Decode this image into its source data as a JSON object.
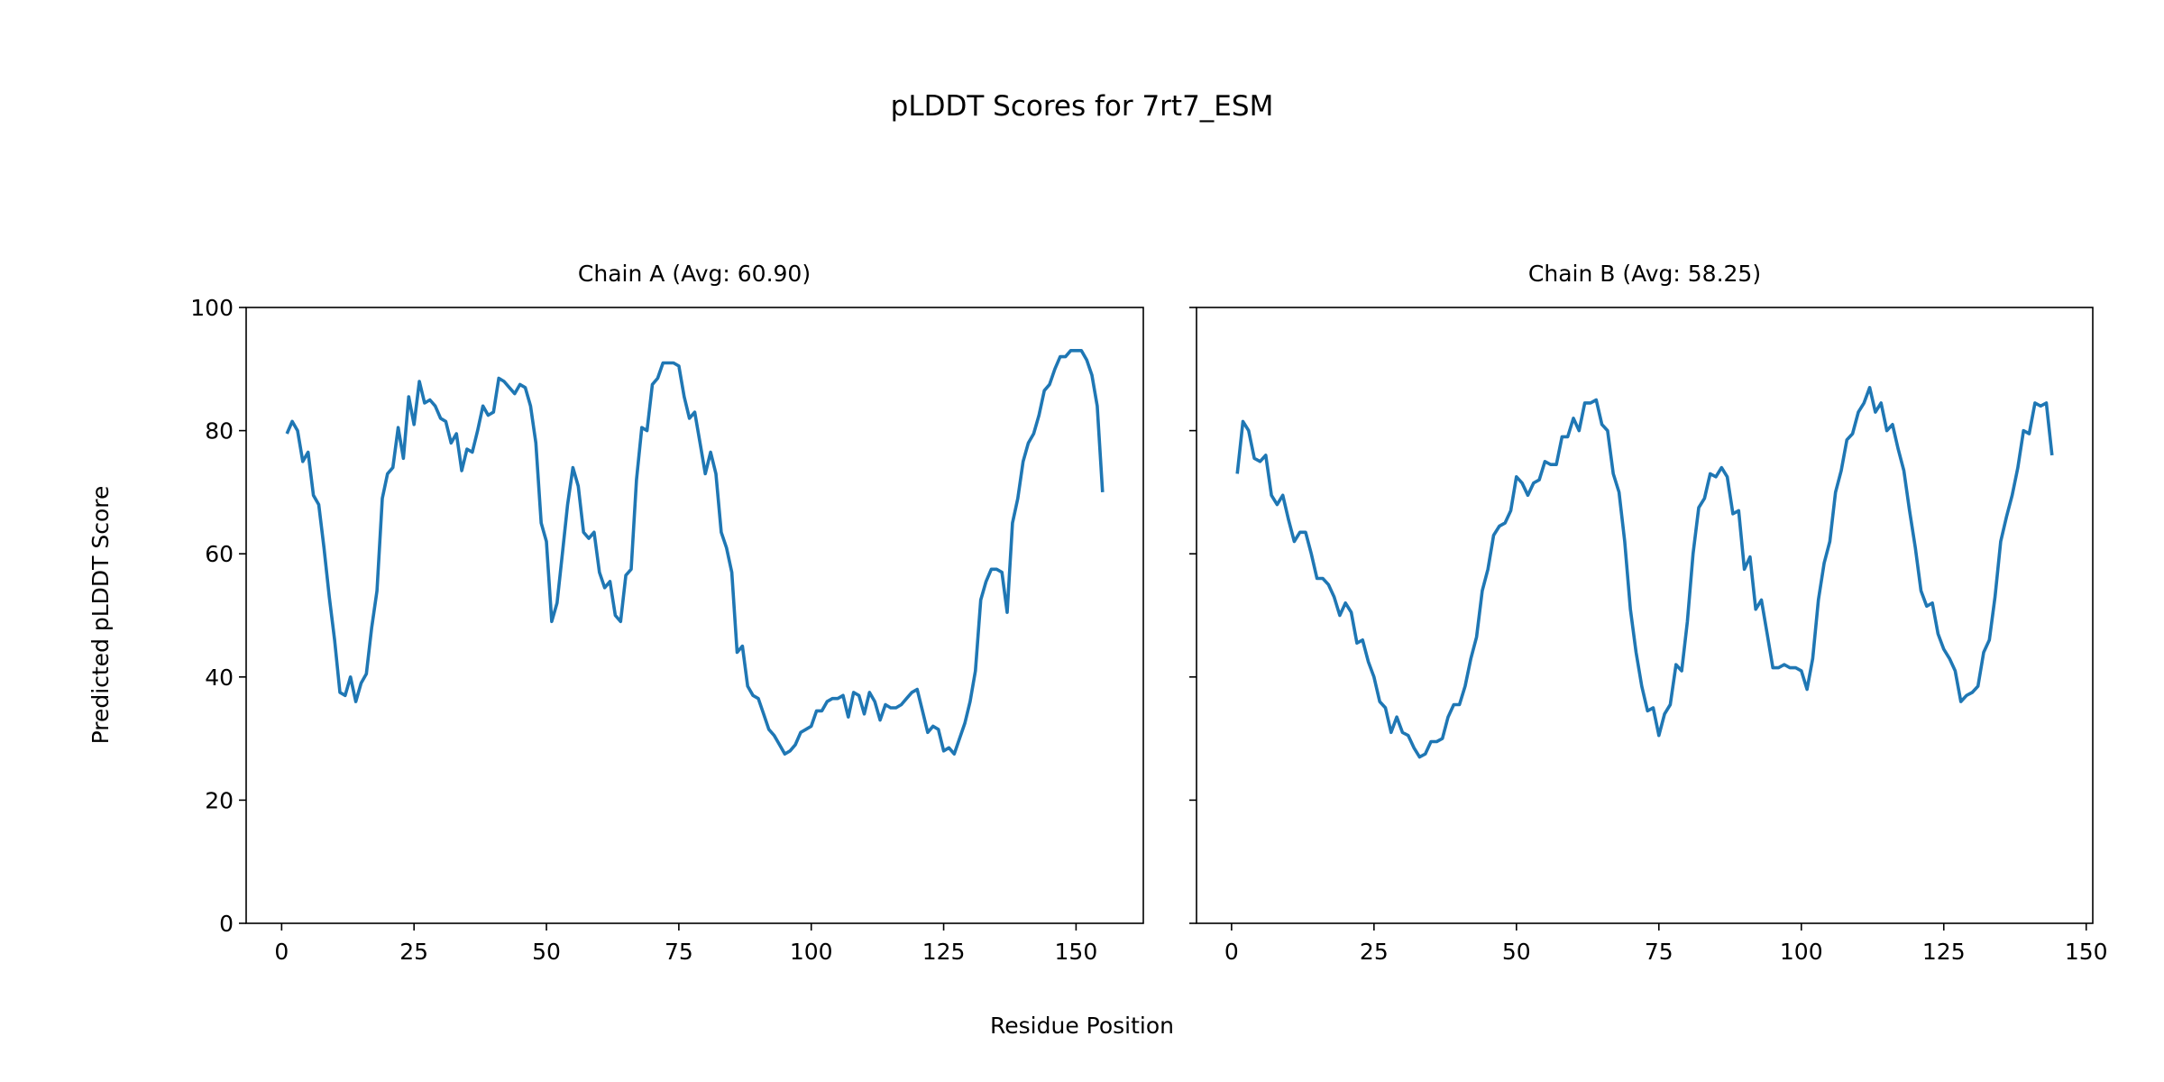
{
  "chart_data": [
    {
      "type": "line",
      "suptitle": "pLDDT Scores for 7rt7_ESM",
      "title": "Chain A (Avg: 60.90)",
      "xlabel": "Residue Position",
      "ylabel": "Predicted pLDDT Score",
      "ylim": [
        0,
        100
      ],
      "xlim": [
        -6.7,
        162.7
      ],
      "xticks": [
        0,
        25,
        50,
        75,
        100,
        125,
        150
      ],
      "yticks": [
        0,
        20,
        40,
        60,
        80,
        100
      ],
      "grid": false,
      "color": "#1f77b4",
      "x_start": 1,
      "values": [
        79.5,
        81.5,
        80,
        75,
        76.5,
        69.5,
        68,
        61,
        53,
        46,
        37.5,
        37,
        40,
        36,
        39,
        40.5,
        48,
        54,
        69,
        73,
        74,
        80.5,
        75.5,
        85.5,
        81,
        88,
        84.5,
        85,
        84,
        82,
        81.5,
        78,
        79.5,
        73.5,
        77,
        76.5,
        80,
        84,
        82.5,
        83,
        88.5,
        88,
        87,
        86,
        87.5,
        87,
        84,
        78,
        65,
        62,
        49,
        52,
        60,
        68,
        74,
        71,
        63.5,
        62.5,
        63.5,
        57,
        54.5,
        55.5,
        50,
        49,
        56.5,
        57.5,
        72,
        80.5,
        80,
        87.5,
        88.5,
        91,
        91,
        91,
        90.5,
        85.5,
        82,
        83,
        78,
        73,
        76.5,
        73,
        63.5,
        61,
        57,
        44,
        45,
        38.5,
        37,
        36.5,
        34,
        31.5,
        30.5,
        29,
        27.5,
        28,
        29,
        31,
        31.5,
        32,
        34.5,
        34.5,
        36,
        36.5,
        36.5,
        37,
        33.5,
        37.5,
        37,
        34,
        37.5,
        36,
        33,
        35.5,
        35,
        35,
        35.5,
        36.5,
        37.5,
        38,
        34.5,
        31,
        32,
        31.5,
        28,
        28.5,
        27.5,
        30,
        32.5,
        36,
        41,
        52.5,
        55.5,
        57.5,
        57.5,
        57,
        50.5,
        65,
        69,
        75,
        78,
        79.5,
        82.5,
        86.5,
        87.5,
        90,
        92,
        92,
        93,
        93,
        93,
        91.5,
        89,
        84,
        70
      ]
    },
    {
      "type": "line",
      "title": "Chain B (Avg: 58.25)",
      "ylim": [
        0,
        100
      ],
      "xlim": [
        -6.15,
        151.15
      ],
      "xticks": [
        0,
        25,
        50,
        75,
        100,
        125,
        150
      ],
      "yticks": [
        0,
        20,
        40,
        60,
        80,
        100
      ],
      "grid": false,
      "color": "#1f77b4",
      "x_start": 1,
      "values": [
        73,
        81.5,
        80,
        75.5,
        75,
        76,
        69.5,
        68,
        69.5,
        65.5,
        62,
        63.5,
        63.5,
        60,
        56,
        56,
        55,
        53,
        50,
        52,
        50.5,
        45.5,
        46,
        42.5,
        40,
        36,
        35,
        31,
        33.5,
        31,
        30.5,
        28.5,
        27,
        27.5,
        29.5,
        29.5,
        30,
        33.5,
        35.5,
        35.5,
        38.5,
        43,
        46.5,
        54,
        57.5,
        63,
        64.5,
        65,
        67,
        72.5,
        71.5,
        69.5,
        71.5,
        72,
        75,
        74.5,
        74.5,
        79,
        79,
        82,
        80,
        84.5,
        84.5,
        85,
        81,
        80,
        73,
        70,
        62,
        51,
        44,
        38.5,
        34.5,
        35,
        30.5,
        34,
        35.5,
        42,
        41,
        49,
        60,
        67.5,
        69,
        73,
        72.5,
        74,
        72.5,
        66.5,
        67,
        57.5,
        59.5,
        51,
        52.5,
        47,
        41.5,
        41.5,
        42,
        41.5,
        41.5,
        41,
        38,
        43,
        52.5,
        58.5,
        62,
        70,
        73.5,
        78.5,
        79.5,
        83,
        84.5,
        87,
        83,
        84.5,
        80,
        81,
        77,
        73.5,
        67,
        61,
        54,
        51.5,
        52,
        47,
        44.5,
        43,
        41,
        36,
        37,
        37.5,
        38.5,
        44,
        46,
        53,
        62,
        66,
        69.5,
        74,
        80,
        79.5,
        84.5,
        84,
        84.5,
        76
      ]
    }
  ]
}
